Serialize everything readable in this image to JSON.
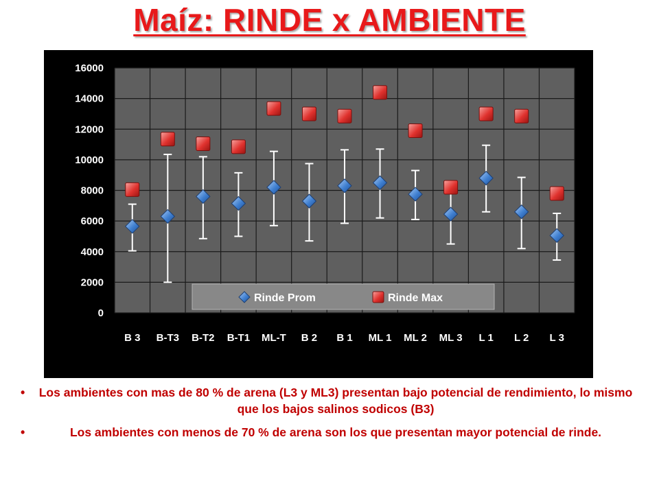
{
  "page": {
    "title": "Maíz: RINDE x AMBIENTE",
    "bullets": [
      "Los ambientes con mas de 80 % de arena (L3 y ML3) presentan bajo potencial de rendimiento, lo mismo que los bajos salinos sodicos (B3)",
      "Los ambientes con menos de 70 % de arena son los que presentan mayor potencial de rinde."
    ],
    "bullet_glyph": "•"
  },
  "chart_data": {
    "type": "scatter",
    "title": "",
    "xlabel": "",
    "ylabel": "",
    "categories": [
      "B 3",
      "B-T3",
      "B-T2",
      "B-T1",
      "ML-T",
      "B 2",
      "B 1",
      "ML 1",
      "ML 2",
      "ML 3",
      "L 1",
      "L 2",
      "L 3"
    ],
    "ylim": [
      0,
      16000
    ],
    "yticks": [
      "0",
      "2000",
      "4000",
      "6000",
      "8000",
      "10000",
      "12000",
      "14000",
      "16000"
    ],
    "grid": true,
    "legend_position": "bottom-inside",
    "series": [
      {
        "name": "Rinde Prom",
        "marker": "diamond",
        "color": "#3f7fd0",
        "values": [
          5650,
          6300,
          7600,
          7150,
          8200,
          7300,
          8300,
          8500,
          7750,
          6450,
          8800,
          6600,
          5050
        ],
        "error_low": [
          4050,
          2000,
          4850,
          5000,
          5700,
          4700,
          5850,
          6200,
          6100,
          4500,
          6600,
          4200,
          3450
        ],
        "error_high": [
          7100,
          10350,
          10200,
          9150,
          10550,
          9750,
          10650,
          10700,
          9300,
          8300,
          10950,
          8850,
          6500
        ]
      },
      {
        "name": "Rinde Max",
        "marker": "square",
        "color": "#e0322e",
        "values": [
          8050,
          11350,
          11050,
          10850,
          13350,
          13000,
          12850,
          14400,
          11900,
          8200,
          13000,
          12850,
          7800
        ]
      }
    ],
    "colors": {
      "background": "#000000",
      "plot_area": "#5f5f5f",
      "gridline": "#1a1a1a",
      "tick_text": "#ffffff",
      "error_bar": "#ffffff",
      "legend_bg": "#888888"
    }
  }
}
